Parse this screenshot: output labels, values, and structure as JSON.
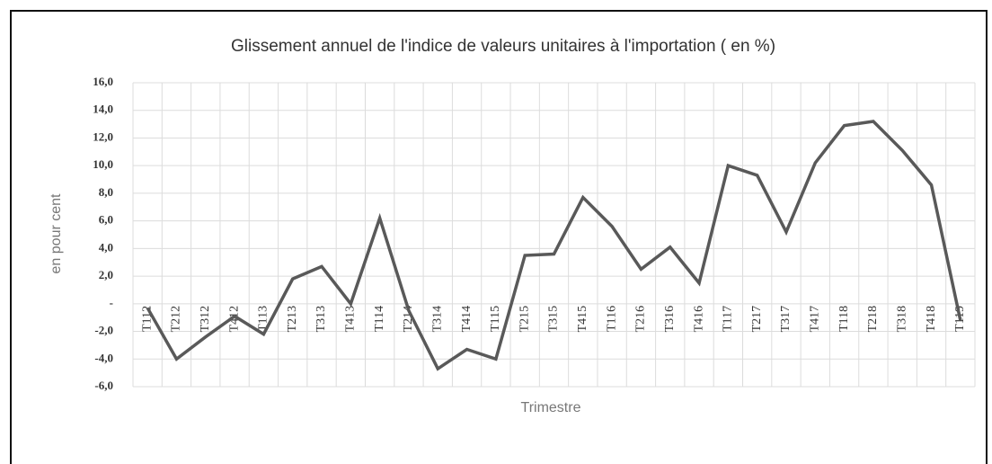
{
  "chart_data": {
    "type": "line",
    "title": "Glissement  annuel de l'indice de valeurs unitaires à l'importation ( en %)",
    "xlabel": "Trimestre",
    "ylabel": "en pour cent",
    "categories": [
      "T112",
      "T212",
      "T312",
      "T412",
      "T113",
      "T213",
      "T313",
      "T413",
      "T114",
      "T214",
      "T314",
      "T414",
      "T115",
      "T215",
      "T315",
      "T415",
      "T116",
      "T216",
      "T316",
      "T416",
      "T117",
      "T217",
      "T317",
      "T417",
      "T118",
      "T218",
      "T318",
      "T418",
      "T119"
    ],
    "series": [
      {
        "name": "Glissement annuel",
        "color": "#595959",
        "values": [
          -0.3,
          -4.0,
          -2.4,
          -0.9,
          -2.2,
          1.8,
          2.7,
          0.0,
          6.2,
          -0.5,
          -4.7,
          -3.3,
          -4.0,
          3.5,
          3.6,
          7.7,
          5.6,
          2.5,
          4.1,
          1.5,
          10.0,
          9.3,
          5.2,
          10.2,
          12.9,
          13.2,
          11.1,
          8.6,
          -1.2
        ]
      }
    ],
    "ylim": [
      -6,
      16
    ],
    "yticks": [
      {
        "value": -6,
        "label": "-6,0"
      },
      {
        "value": -4,
        "label": "-4,0"
      },
      {
        "value": -2,
        "label": "-2,0"
      },
      {
        "value": 0,
        "label": "-"
      },
      {
        "value": 2,
        "label": "2,0"
      },
      {
        "value": 4,
        "label": "4,0"
      },
      {
        "value": 6,
        "label": "6,0"
      },
      {
        "value": 8,
        "label": "8,0"
      },
      {
        "value": 10,
        "label": "10,0"
      },
      {
        "value": 12,
        "label": "12,0"
      },
      {
        "value": 14,
        "label": "14,0"
      },
      {
        "value": 16,
        "label": "16,0"
      }
    ],
    "grid": true
  }
}
